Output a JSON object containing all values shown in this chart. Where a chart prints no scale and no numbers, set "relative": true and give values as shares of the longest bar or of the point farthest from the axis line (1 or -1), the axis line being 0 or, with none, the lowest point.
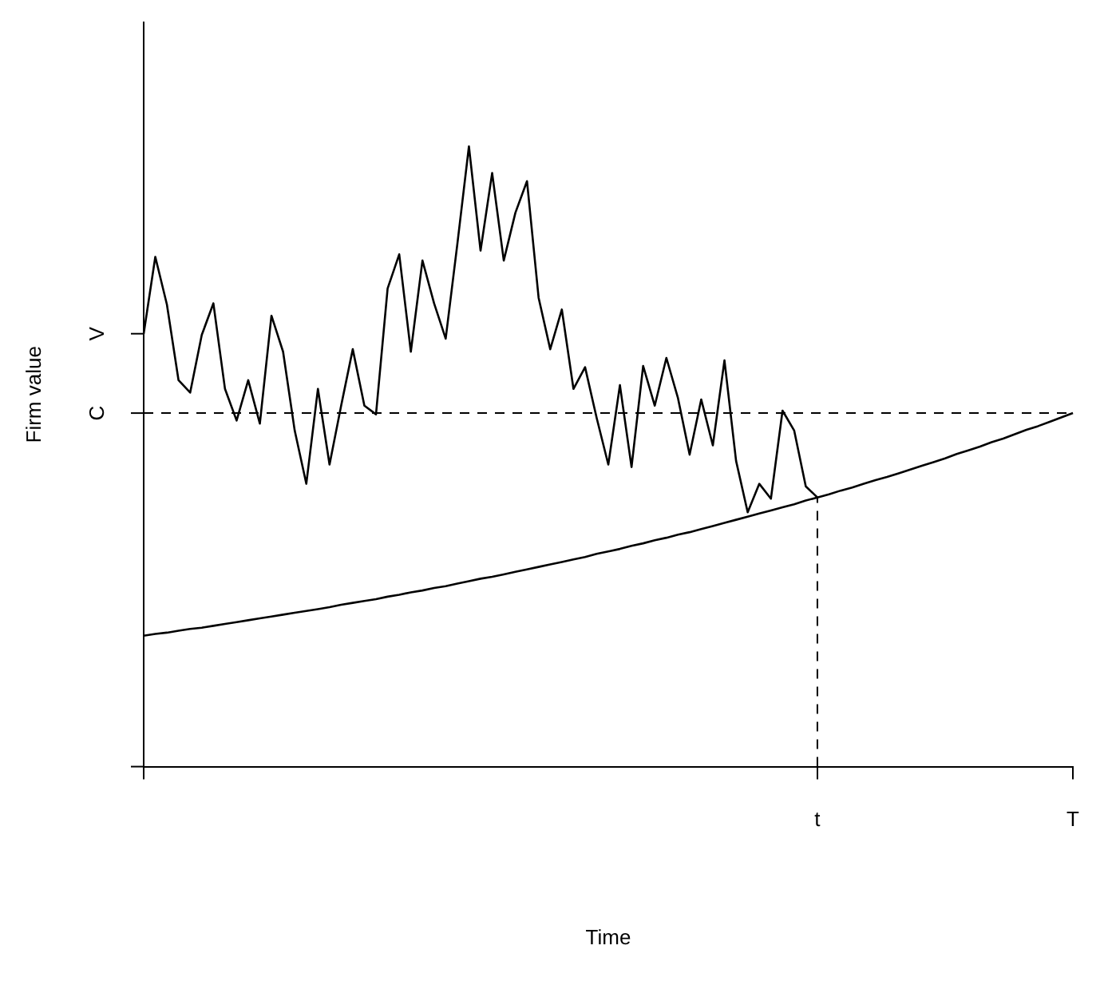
{
  "chart_data": {
    "type": "line",
    "relative": true,
    "xlabel": "Time",
    "ylabel": "Firm value",
    "categories": [
      null,
      null,
      null,
      null,
      null,
      null,
      null,
      null,
      null,
      null,
      null,
      null,
      null,
      null,
      null,
      null,
      null,
      null,
      null,
      null,
      null,
      null,
      null,
      null,
      null,
      null,
      null,
      null,
      null,
      null,
      null,
      null,
      null,
      null,
      null,
      null,
      null,
      null,
      null,
      null,
      null,
      null,
      null,
      null,
      null,
      null,
      null,
      null,
      null,
      null,
      null,
      null,
      null,
      null,
      null,
      null,
      null,
      null,
      "t",
      null,
      null,
      null,
      null,
      null,
      null,
      null,
      null,
      null,
      null,
      null,
      null,
      null,
      null,
      null,
      null,
      null,
      null,
      null,
      null,
      null,
      "T"
    ],
    "grid": false,
    "legend": false,
    "marker": "none",
    "annotations": [
      "V"
    ],
    "ref_lines": [
      {
        "axis": "y",
        "value": 0.57,
        "label": "C",
        "line_style": "dashed",
        "color": "#000000"
      },
      {
        "axis": "x",
        "value": "t",
        "line_style": "dashed",
        "color": "#000000"
      }
    ],
    "series": [
      {
        "color": "#000000",
        "values": [
          0.698,
          0.822,
          0.745,
          0.623,
          0.603,
          0.696,
          0.747,
          0.609,
          0.558,
          0.623,
          0.553,
          0.727,
          0.669,
          0.542,
          0.456,
          0.609,
          0.487,
          0.582,
          0.673,
          0.582,
          0.568,
          0.771,
          0.826,
          0.669,
          0.816,
          0.747,
          0.69,
          0.842,
          1,
          0.832,
          0.957,
          0.816,
          0.893,
          0.944,
          0.756,
          0.673,
          0.737,
          0.609,
          0.644,
          0.562,
          0.487,
          0.615,
          0.483,
          0.646,
          0.582,
          0.659,
          0.594,
          0.503,
          0.592,
          0.518,
          0.655,
          0.493,
          0.41,
          0.456,
          0.432,
          0.574,
          0.542,
          0.452,
          0.434,
          null,
          null,
          null,
          null,
          null,
          null,
          null,
          null,
          null,
          null,
          null,
          null,
          null,
          null,
          null,
          null,
          null,
          null,
          null,
          null,
          null,
          null
        ]
      },
      {
        "color": "#000000",
        "values": [
          0.211,
          0.214,
          0.216,
          0.219,
          0.222,
          0.224,
          0.227,
          0.23,
          0.233,
          0.236,
          0.239,
          0.242,
          0.245,
          0.248,
          0.251,
          0.254,
          0.257,
          0.261,
          0.264,
          0.267,
          0.27,
          0.274,
          0.277,
          0.281,
          0.284,
          0.288,
          0.291,
          0.295,
          0.299,
          0.303,
          0.306,
          0.31,
          0.314,
          0.318,
          0.322,
          0.326,
          0.33,
          0.334,
          0.338,
          0.343,
          0.347,
          0.351,
          0.356,
          0.36,
          0.365,
          0.369,
          0.374,
          0.378,
          0.383,
          0.388,
          0.393,
          0.398,
          0.403,
          0.408,
          0.413,
          0.418,
          0.423,
          0.429,
          0.434,
          0.439,
          0.445,
          0.45,
          0.456,
          0.462,
          0.467,
          0.473,
          0.479,
          0.485,
          0.491,
          0.497,
          0.504,
          0.51,
          0.516,
          0.523,
          0.529,
          0.536,
          0.543,
          0.549,
          0.556,
          0.563,
          0.57
        ]
      }
    ]
  }
}
